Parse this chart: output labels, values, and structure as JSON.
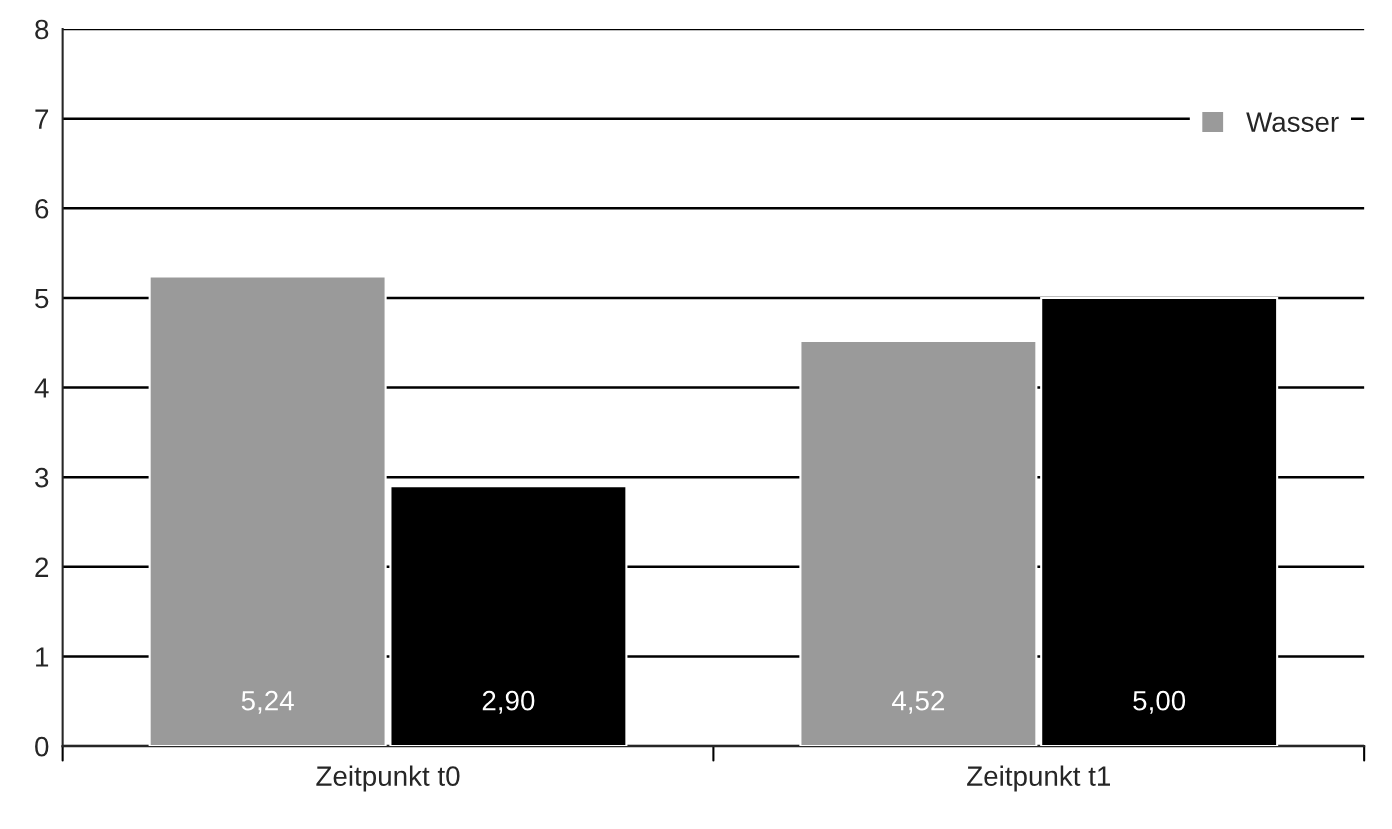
{
  "chart_data": {
    "type": "bar",
    "categories": [
      "Zeitpunkt t0",
      "Zeitpunkt t1"
    ],
    "series": [
      {
        "name": "Wasser",
        "color": "#9a9a9a",
        "values": [
          5.24,
          4.52
        ],
        "value_labels": [
          "5,24",
          "4,52"
        ]
      },
      {
        "color": "#000000",
        "values": [
          2.9,
          5.0
        ],
        "value_labels": [
          "2,90",
          "5,00"
        ]
      }
    ],
    "ylim": [
      0,
      8
    ],
    "yticks": [
      0,
      1,
      2,
      3,
      4,
      5,
      6,
      7,
      8
    ],
    "grid": "y",
    "legend": "top right"
  }
}
